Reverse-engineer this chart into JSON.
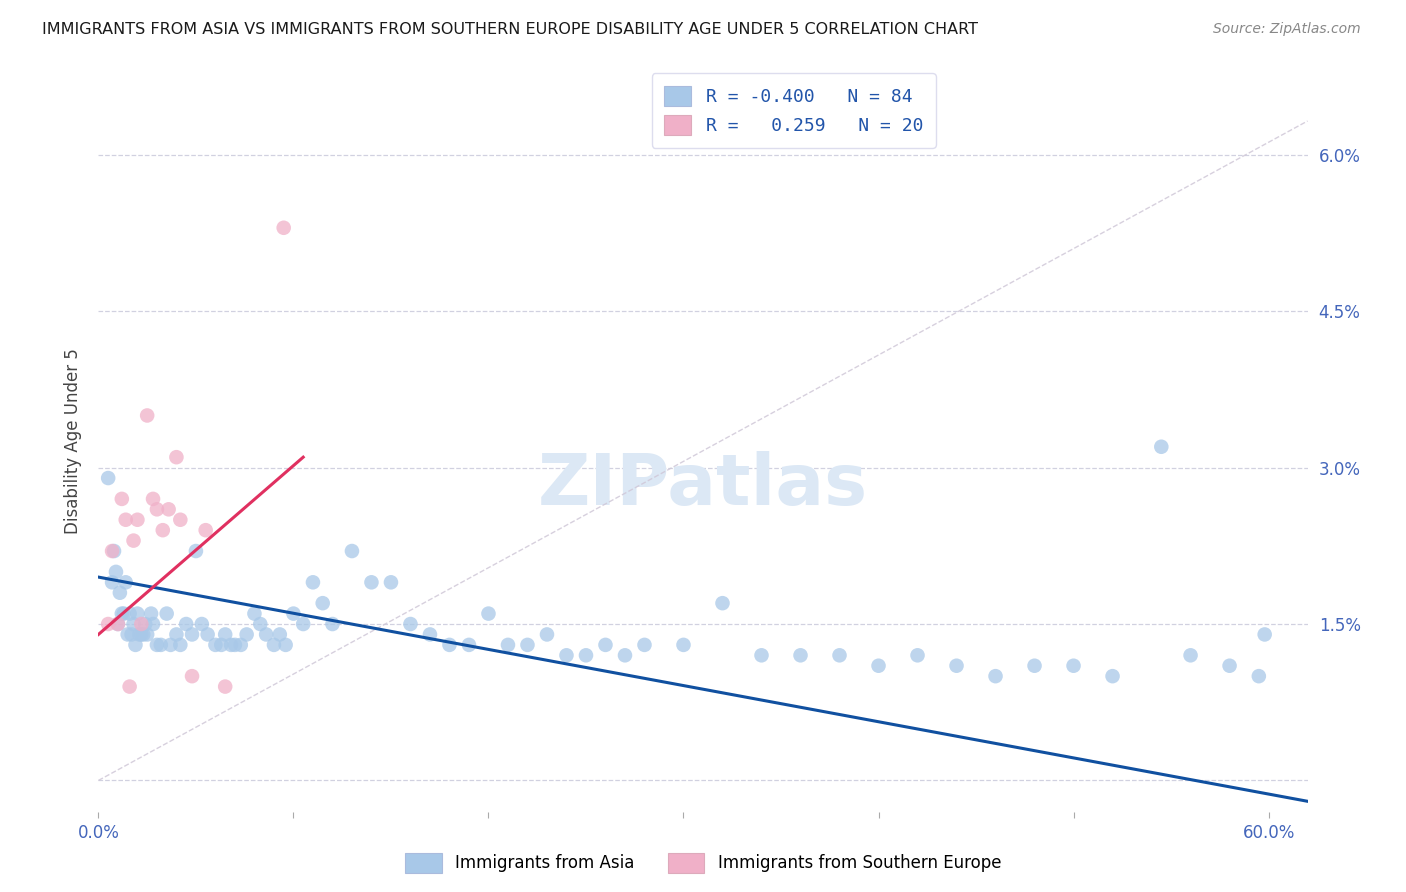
{
  "title": "IMMIGRANTS FROM ASIA VS IMMIGRANTS FROM SOUTHERN EUROPE DISABILITY AGE UNDER 5 CORRELATION CHART",
  "source": "Source: ZipAtlas.com",
  "ylabel": "Disability Age Under 5",
  "legend_label_asia": "Immigrants from Asia",
  "legend_label_se": "Immigrants from Southern Europe",
  "r_asia": -0.4,
  "n_asia": 84,
  "r_se": 0.259,
  "n_se": 20,
  "xmin": 0.0,
  "xmax": 0.62,
  "ymin": -0.003,
  "ymax": 0.068,
  "color_asia": "#a8c8e8",
  "color_se": "#f0b0c8",
  "line_color_asia": "#1050a0",
  "line_color_se": "#e03060",
  "line_color_diagonal": "#d0c8d8",
  "watermark_text": "ZIPatlas",
  "watermark_color": "#dce8f5",
  "ytick_vals": [
    0.0,
    0.015,
    0.03,
    0.045,
    0.06
  ],
  "ytick_labels": [
    "",
    "1.5%",
    "3.0%",
    "4.5%",
    "6.0%"
  ],
  "xtick_vals": [
    0.0,
    0.1,
    0.2,
    0.3,
    0.4,
    0.5,
    0.6
  ],
  "xtick_show": [
    "0.0%",
    "",
    "",
    "",
    "",
    "",
    "60.0%"
  ],
  "asia_x": [
    0.005,
    0.007,
    0.008,
    0.009,
    0.01,
    0.011,
    0.012,
    0.013,
    0.014,
    0.015,
    0.016,
    0.017,
    0.018,
    0.019,
    0.02,
    0.021,
    0.022,
    0.023,
    0.024,
    0.025,
    0.027,
    0.028,
    0.03,
    0.032,
    0.035,
    0.037,
    0.04,
    0.042,
    0.045,
    0.048,
    0.05,
    0.053,
    0.056,
    0.06,
    0.063,
    0.065,
    0.068,
    0.07,
    0.073,
    0.076,
    0.08,
    0.083,
    0.086,
    0.09,
    0.093,
    0.096,
    0.1,
    0.105,
    0.11,
    0.115,
    0.12,
    0.13,
    0.14,
    0.15,
    0.16,
    0.17,
    0.18,
    0.19,
    0.2,
    0.21,
    0.22,
    0.23,
    0.24,
    0.25,
    0.26,
    0.27,
    0.28,
    0.3,
    0.32,
    0.34,
    0.36,
    0.38,
    0.4,
    0.42,
    0.44,
    0.46,
    0.48,
    0.5,
    0.52,
    0.545,
    0.56,
    0.58,
    0.595,
    0.598
  ],
  "asia_y": [
    0.029,
    0.019,
    0.022,
    0.02,
    0.015,
    0.018,
    0.016,
    0.016,
    0.019,
    0.014,
    0.016,
    0.014,
    0.015,
    0.013,
    0.016,
    0.014,
    0.014,
    0.014,
    0.015,
    0.014,
    0.016,
    0.015,
    0.013,
    0.013,
    0.016,
    0.013,
    0.014,
    0.013,
    0.015,
    0.014,
    0.022,
    0.015,
    0.014,
    0.013,
    0.013,
    0.014,
    0.013,
    0.013,
    0.013,
    0.014,
    0.016,
    0.015,
    0.014,
    0.013,
    0.014,
    0.013,
    0.016,
    0.015,
    0.019,
    0.017,
    0.015,
    0.022,
    0.019,
    0.019,
    0.015,
    0.014,
    0.013,
    0.013,
    0.016,
    0.013,
    0.013,
    0.014,
    0.012,
    0.012,
    0.013,
    0.012,
    0.013,
    0.013,
    0.017,
    0.012,
    0.012,
    0.012,
    0.011,
    0.012,
    0.011,
    0.01,
    0.011,
    0.011,
    0.01,
    0.032,
    0.012,
    0.011,
    0.01,
    0.014
  ],
  "se_x": [
    0.005,
    0.007,
    0.01,
    0.012,
    0.014,
    0.016,
    0.018,
    0.02,
    0.022,
    0.025,
    0.028,
    0.03,
    0.033,
    0.036,
    0.04,
    0.042,
    0.048,
    0.055,
    0.065,
    0.095
  ],
  "se_y": [
    0.015,
    0.022,
    0.015,
    0.027,
    0.025,
    0.009,
    0.023,
    0.025,
    0.015,
    0.035,
    0.027,
    0.026,
    0.024,
    0.026,
    0.031,
    0.025,
    0.01,
    0.024,
    0.009,
    0.053
  ],
  "asia_line_x0": 0.0,
  "asia_line_x1": 0.62,
  "asia_line_y0": 0.0195,
  "asia_line_y1": -0.002,
  "se_line_x0": 0.0,
  "se_line_x1": 0.105,
  "se_line_y0": 0.014,
  "se_line_y1": 0.031
}
